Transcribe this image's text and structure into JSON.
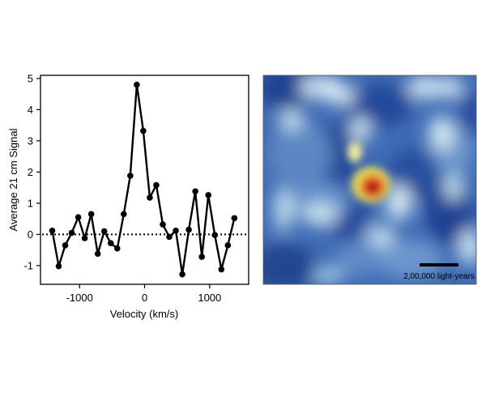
{
  "chart_data": [
    {
      "type": "line",
      "xlabel": "Velocity (km/s)",
      "ylabel": "Average 21 cm Signal",
      "xlim": [
        -1600,
        1600
      ],
      "ylim": [
        -1.6,
        5.1
      ],
      "x_ticks": [
        -1000,
        0,
        1000
      ],
      "x_tick_labels": [
        "-1000",
        "0",
        "1000"
      ],
      "y_ticks": [
        -1,
        0,
        1,
        2,
        3,
        4,
        5
      ],
      "y_tick_labels": [
        "-1",
        "0",
        "1",
        "2",
        "3",
        "4",
        "5"
      ],
      "baseline": 0,
      "grid": false,
      "legend": "none",
      "line_color": "#000000",
      "series": [
        {
          "x": [
            -1420,
            -1320,
            -1220,
            -1120,
            -1020,
            -920,
            -820,
            -720,
            -620,
            -520,
            -420,
            -320,
            -220,
            -120,
            -20,
            80,
            180,
            280,
            380,
            480,
            580,
            680,
            780,
            880,
            980,
            1080,
            1180,
            1280,
            1380
          ],
          "y": [
            0.12,
            -1.02,
            -0.35,
            0.05,
            0.55,
            -0.12,
            0.65,
            -0.62,
            0.1,
            -0.28,
            -0.45,
            0.65,
            1.88,
            4.8,
            3.32,
            1.18,
            1.58,
            0.32,
            -0.08,
            0.12,
            -1.28,
            0.15,
            1.38,
            -0.72,
            1.26,
            -0.02,
            -1.12,
            -0.35,
            0.52
          ]
        }
      ]
    },
    {
      "type": "heatmap",
      "colormap": [
        "#2d4f9e",
        "#5f8ec7",
        "#d7ebf4",
        "#f2e85a",
        "#e03a1c",
        "#8b0f0f"
      ],
      "annotation": "2,00,000 light-years"
    }
  ]
}
